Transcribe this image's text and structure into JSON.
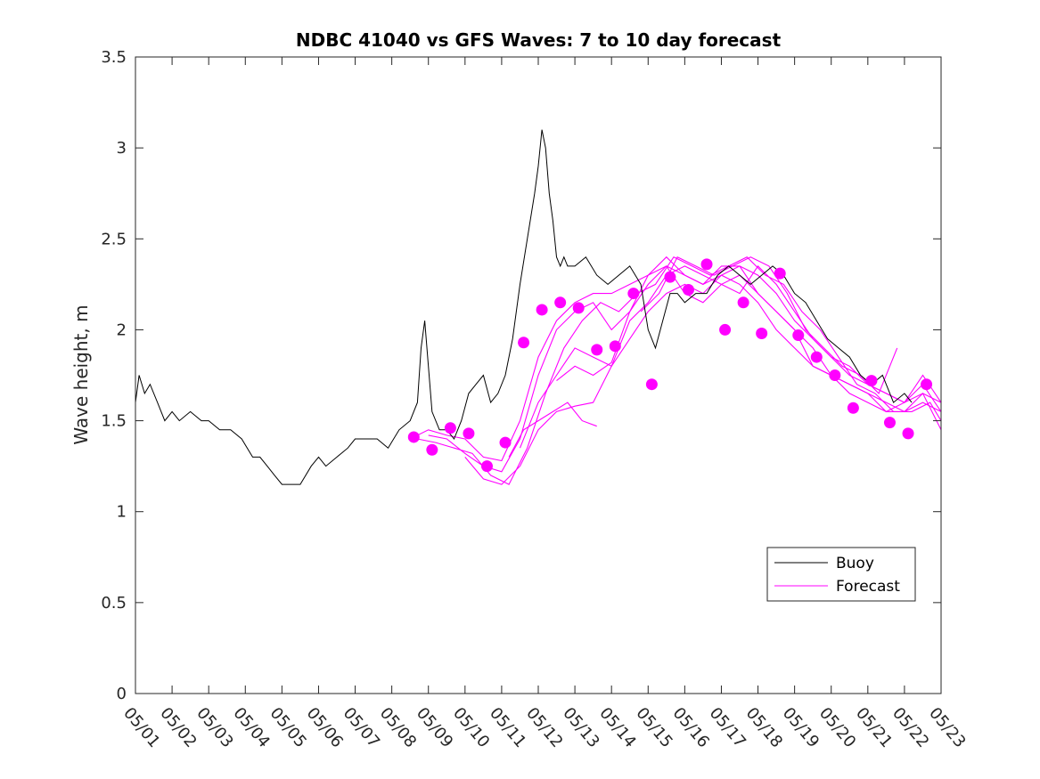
{
  "chart_data": {
    "type": "line",
    "title": "NDBC 41040 vs GFS Waves: 7 to 10 day forecast",
    "xlabel": "",
    "ylabel": "Wave height, m",
    "x_domain_days": [
      1,
      23
    ],
    "ylim": [
      0,
      3.5
    ],
    "yticks": [
      0,
      0.5,
      1,
      1.5,
      2,
      2.5,
      3,
      3.5
    ],
    "ytick_labels": [
      "0",
      "0.5",
      "1",
      "1.5",
      "2",
      "2.5",
      "3",
      "3.5"
    ],
    "xtick_labels": [
      "05/01",
      "05/02",
      "05/03",
      "05/04",
      "05/05",
      "05/06",
      "05/07",
      "05/08",
      "05/09",
      "05/10",
      "05/11",
      "05/12",
      "05/13",
      "05/14",
      "05/15",
      "05/16",
      "05/17",
      "05/18",
      "05/19",
      "05/20",
      "05/21",
      "05/22",
      "05/23"
    ],
    "grid": false,
    "legend_position": "lower-right",
    "colors": {
      "buoy": "#000000",
      "forecast": "#ff00ff",
      "axes": "#262626"
    },
    "series": [
      {
        "name": "Buoy",
        "style": "line",
        "x": [
          1.0,
          1.1,
          1.25,
          1.4,
          1.6,
          1.8,
          2.0,
          2.2,
          2.5,
          2.8,
          3.0,
          3.3,
          3.6,
          3.9,
          4.2,
          4.4,
          4.6,
          4.8,
          5.0,
          5.2,
          5.5,
          5.8,
          6.0,
          6.2,
          6.5,
          6.8,
          7.0,
          7.3,
          7.6,
          7.9,
          8.2,
          8.5,
          8.7,
          8.8,
          8.9,
          9.0,
          9.1,
          9.3,
          9.5,
          9.7,
          9.9,
          10.1,
          10.3,
          10.5,
          10.7,
          10.9,
          11.1,
          11.3,
          11.5,
          11.7,
          11.9,
          12.0,
          12.1,
          12.2,
          12.3,
          12.4,
          12.5,
          12.6,
          12.7,
          12.8,
          13.0,
          13.3,
          13.6,
          13.9,
          14.2,
          14.5,
          14.8,
          15.0,
          15.2,
          15.4,
          15.6,
          15.8,
          16.0,
          16.3,
          16.6,
          16.9,
          17.2,
          17.5,
          17.8,
          18.1,
          18.4,
          18.7,
          19.0,
          19.3,
          19.6,
          19.9,
          20.2,
          20.5,
          20.8,
          21.1,
          21.4,
          21.7,
          22.0,
          22.2
        ],
        "y": [
          1.6,
          1.75,
          1.65,
          1.7,
          1.6,
          1.5,
          1.55,
          1.5,
          1.55,
          1.5,
          1.5,
          1.45,
          1.45,
          1.4,
          1.3,
          1.3,
          1.25,
          1.2,
          1.15,
          1.15,
          1.15,
          1.25,
          1.3,
          1.25,
          1.3,
          1.35,
          1.4,
          1.4,
          1.4,
          1.35,
          1.45,
          1.5,
          1.6,
          1.9,
          2.05,
          1.8,
          1.55,
          1.45,
          1.45,
          1.4,
          1.5,
          1.65,
          1.7,
          1.75,
          1.6,
          1.65,
          1.75,
          1.95,
          2.25,
          2.5,
          2.75,
          2.9,
          3.1,
          3.0,
          2.75,
          2.6,
          2.4,
          2.35,
          2.4,
          2.35,
          2.35,
          2.4,
          2.3,
          2.25,
          2.3,
          2.35,
          2.25,
          2.0,
          1.9,
          2.05,
          2.2,
          2.2,
          2.15,
          2.2,
          2.2,
          2.3,
          2.35,
          2.3,
          2.25,
          2.3,
          2.35,
          2.3,
          2.2,
          2.15,
          2.05,
          1.95,
          1.9,
          1.85,
          1.75,
          1.7,
          1.75,
          1.6,
          1.65,
          1.6
        ]
      },
      {
        "name": "Forecast",
        "style": "line",
        "x": [
          8.5,
          9.0,
          9.5,
          10.0,
          10.5,
          11.0,
          11.5,
          12.0,
          12.5,
          13.0,
          13.5,
          14.0,
          14.5,
          15.0,
          15.5,
          16.0,
          16.5,
          17.0,
          17.5,
          18.0,
          18.5,
          19.0,
          19.5,
          20.0,
          20.5,
          21.0,
          21.5,
          22.0,
          22.5,
          23.0
        ],
        "y": [
          1.4,
          1.45,
          1.42,
          1.4,
          1.3,
          1.28,
          1.5,
          1.85,
          2.05,
          2.15,
          2.2,
          2.2,
          2.25,
          2.3,
          2.35,
          2.3,
          2.25,
          2.3,
          2.35,
          2.3,
          2.2,
          2.05,
          1.95,
          1.85,
          1.75,
          1.7,
          1.65,
          1.6,
          1.65,
          1.6
        ]
      },
      {
        "x": [
          8.7,
          9.2,
          9.7,
          10.2,
          10.7,
          11.2,
          11.7,
          12.2,
          12.7,
          13.2,
          13.7,
          14.2,
          14.7,
          15.2,
          15.7,
          16.2,
          16.7,
          17.2,
          17.7,
          18.2,
          18.7,
          19.2,
          19.7,
          20.2,
          20.7,
          21.2,
          21.7,
          22.2,
          22.7,
          23.0
        ],
        "y": [
          1.4,
          1.38,
          1.35,
          1.32,
          1.2,
          1.15,
          1.35,
          1.65,
          1.9,
          2.05,
          2.15,
          2.1,
          2.2,
          2.25,
          2.4,
          2.35,
          2.3,
          2.35,
          2.4,
          2.3,
          2.25,
          2.1,
          2.0,
          1.85,
          1.7,
          1.65,
          1.55,
          1.55,
          1.6,
          1.5
        ]
      },
      {
        "x": [
          9.0,
          9.5,
          10.0,
          10.5,
          11.0,
          11.5,
          12.0,
          12.5,
          13.0,
          13.5,
          14.0,
          14.5,
          15.0,
          15.5,
          16.0,
          16.5,
          17.0,
          17.5,
          18.0,
          18.5,
          19.0,
          19.5,
          20.0,
          20.5,
          21.0,
          21.5,
          22.0,
          22.5,
          23.0
        ],
        "y": [
          1.42,
          1.4,
          1.32,
          1.25,
          1.22,
          1.4,
          1.75,
          2.0,
          2.1,
          2.15,
          2.0,
          2.1,
          2.25,
          2.35,
          2.2,
          2.15,
          2.25,
          2.3,
          2.2,
          2.1,
          2.0,
          1.9,
          1.75,
          1.7,
          1.65,
          1.55,
          1.6,
          1.7,
          1.55
        ]
      },
      {
        "x": [
          10.0,
          10.5,
          11.0,
          11.5,
          12.0,
          12.5,
          13.0,
          13.5,
          14.0,
          14.5,
          15.0,
          15.5,
          16.0,
          16.5,
          17.0,
          17.5,
          18.0,
          18.5,
          19.0,
          19.5,
          20.0,
          20.5,
          21.0,
          21.5,
          22.0,
          22.5,
          23.0
        ],
        "y": [
          1.3,
          1.18,
          1.15,
          1.25,
          1.45,
          1.55,
          1.58,
          1.6,
          1.8,
          1.95,
          2.1,
          2.2,
          2.25,
          2.2,
          2.3,
          2.25,
          2.15,
          2.0,
          1.9,
          1.8,
          1.75,
          1.65,
          1.6,
          1.55,
          1.55,
          1.65,
          1.45
        ]
      },
      {
        "x": [
          11.2,
          11.6,
          12.0,
          12.4,
          12.8,
          13.2,
          13.6
        ],
        "y": [
          1.3,
          1.45,
          1.5,
          1.55,
          1.6,
          1.5,
          1.47
        ]
      },
      {
        "x": [
          11.5,
          12.0,
          12.5,
          13.0,
          13.5,
          14.0,
          14.5,
          15.0,
          15.5,
          16.0,
          16.5,
          17.0,
          17.5,
          18.0,
          18.5,
          19.0,
          19.5,
          20.0,
          20.5,
          21.0,
          21.5,
          22.0,
          22.5,
          23.0
        ],
        "y": [
          1.35,
          1.6,
          1.75,
          1.9,
          1.85,
          1.8,
          2.05,
          2.15,
          2.3,
          2.35,
          2.3,
          2.25,
          2.2,
          2.35,
          2.25,
          2.1,
          1.95,
          1.85,
          1.8,
          1.7,
          1.65,
          1.6,
          1.75,
          1.6
        ]
      },
      {
        "x": [
          12.5,
          13.0,
          13.5,
          14.0,
          14.5,
          15.0,
          15.5,
          16.0,
          16.5,
          17.0,
          17.5,
          18.0,
          18.5,
          19.0,
          19.5,
          20.0,
          20.5,
          21.0,
          21.5,
          22.0,
          22.5,
          23.0
        ],
        "y": [
          1.72,
          1.8,
          1.75,
          1.82,
          2.1,
          2.3,
          2.4,
          2.3,
          2.25,
          2.35,
          2.35,
          2.2,
          2.1,
          2.0,
          1.8,
          1.75,
          1.7,
          1.65,
          1.6,
          1.55,
          1.6,
          1.55
        ]
      },
      {
        "x": [
          14.8,
          15.3,
          15.8,
          16.3,
          16.8,
          17.3,
          17.8,
          18.3,
          18.8,
          19.3,
          19.8,
          20.3,
          20.8,
          21.3,
          21.8
        ],
        "y": [
          2.1,
          2.2,
          2.4,
          2.35,
          2.3,
          2.35,
          2.4,
          2.35,
          2.2,
          2.0,
          1.9,
          1.8,
          1.75,
          1.65,
          1.9
        ]
      },
      {
        "name": "Forecast points",
        "style": "markers",
        "x": [
          8.6,
          9.1,
          9.6,
          10.1,
          10.6,
          11.1,
          11.6,
          12.1,
          12.6,
          13.1,
          13.6,
          14.1,
          14.6,
          15.1,
          15.6,
          16.1,
          16.6,
          17.1,
          17.6,
          18.1,
          18.6,
          19.1,
          19.6,
          20.1,
          20.6,
          21.1,
          21.6,
          22.1,
          22.6
        ],
        "y": [
          1.41,
          1.34,
          1.46,
          1.43,
          1.25,
          1.38,
          1.93,
          2.11,
          2.15,
          2.12,
          1.89,
          1.91,
          2.2,
          1.7,
          2.29,
          2.22,
          2.36,
          2.0,
          2.15,
          1.98,
          2.31,
          1.97,
          1.85,
          1.75,
          1.57,
          1.72,
          1.49,
          1.43,
          1.7
        ]
      }
    ],
    "legend": [
      {
        "label": "Buoy",
        "color": "#000000"
      },
      {
        "label": "Forecast",
        "color": "#ff00ff"
      }
    ]
  }
}
